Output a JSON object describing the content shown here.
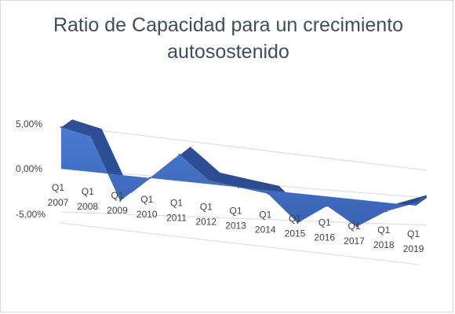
{
  "chart_data": {
    "type": "area",
    "title": "Ratio de Capacidad para un crecimiento autosostenido",
    "categories": [
      "Q1 2007",
      "Q1 2008",
      "Q1 2009",
      "Q1 2010",
      "Q1 2011",
      "Q1 2012",
      "Q1 2013",
      "Q1 2014",
      "Q1 2015",
      "Q1 2016",
      "Q1 2017",
      "Q1 2018",
      "Q1 2019"
    ],
    "values": [
      4.8,
      4.2,
      -3.2,
      0.0,
      3.5,
      0.5,
      0.0,
      -0.5,
      -4.5,
      -1.5,
      -4.5,
      -1.5,
      0.5
    ],
    "y_ticks": [
      "5,00%",
      "0,00%",
      "-5,00%"
    ],
    "ylim": [
      -5,
      5
    ],
    "grid": true,
    "legend": false,
    "series_color": "#4472c4"
  }
}
